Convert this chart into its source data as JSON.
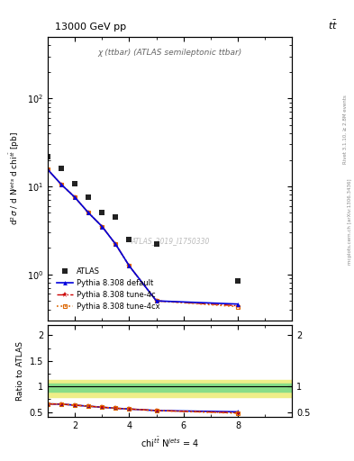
{
  "title_energy": "13000 GeV pp",
  "title_process": "tt",
  "inner_title": "χ (ttbar) (ATLAS semileptonic ttbar)",
  "watermark": "ATLAS_2019_I1750330",
  "rivet_label": "Rivet 3.1.10, ≥ 2.8M events",
  "arxiv_label": "mcplots.cern.ch [arXiv:1306.3436]",
  "atlas_x": [
    1.0,
    1.5,
    2.0,
    2.5,
    3.0,
    3.5,
    4.0,
    5.0,
    8.0
  ],
  "atlas_y": [
    22.0,
    16.0,
    10.8,
    7.5,
    5.0,
    4.5,
    2.5,
    2.2,
    0.85
  ],
  "pythia_default_x": [
    1.0,
    1.5,
    2.0,
    2.5,
    3.0,
    3.5,
    4.0,
    5.0,
    8.0
  ],
  "pythia_default_y": [
    15.5,
    10.5,
    7.5,
    5.0,
    3.5,
    2.2,
    1.25,
    0.5,
    0.46
  ],
  "pythia_4c_x": [
    1.0,
    1.5,
    2.0,
    2.5,
    3.0,
    3.5,
    4.0,
    5.0,
    8.0
  ],
  "pythia_4c_y": [
    15.5,
    10.5,
    7.5,
    5.0,
    3.5,
    2.2,
    1.25,
    0.5,
    0.44
  ],
  "pythia_4cx_x": [
    1.0,
    1.5,
    2.0,
    2.5,
    3.0,
    3.5,
    4.0,
    5.0,
    8.0
  ],
  "pythia_4cx_y": [
    15.5,
    10.5,
    7.5,
    5.0,
    3.5,
    2.2,
    1.25,
    0.5,
    0.43
  ],
  "ratio_x": [
    1.0,
    1.5,
    2.0,
    2.5,
    3.0,
    3.5,
    4.0,
    5.0,
    8.0
  ],
  "ratio_default_y": [
    0.66,
    0.655,
    0.635,
    0.615,
    0.595,
    0.575,
    0.56,
    0.53,
    0.505
  ],
  "ratio_4c_y": [
    0.66,
    0.655,
    0.635,
    0.615,
    0.595,
    0.575,
    0.56,
    0.53,
    0.485
  ],
  "ratio_4cx_y": [
    0.66,
    0.655,
    0.635,
    0.615,
    0.595,
    0.575,
    0.56,
    0.53,
    0.478
  ],
  "green_band_low": 0.9,
  "green_band_high": 1.06,
  "yellow_band_low": 0.8,
  "yellow_band_high": 1.12,
  "xlim": [
    1.0,
    10.0
  ],
  "ylim_main": [
    0.3,
    500
  ],
  "ylim_ratio": [
    0.4,
    2.2
  ],
  "color_atlas": "#222222",
  "color_default": "#0000dd",
  "color_4c": "#cc0000",
  "color_4cx": "#dd6600",
  "color_green_band": "#88dd88",
  "color_yellow_band": "#eeee88"
}
